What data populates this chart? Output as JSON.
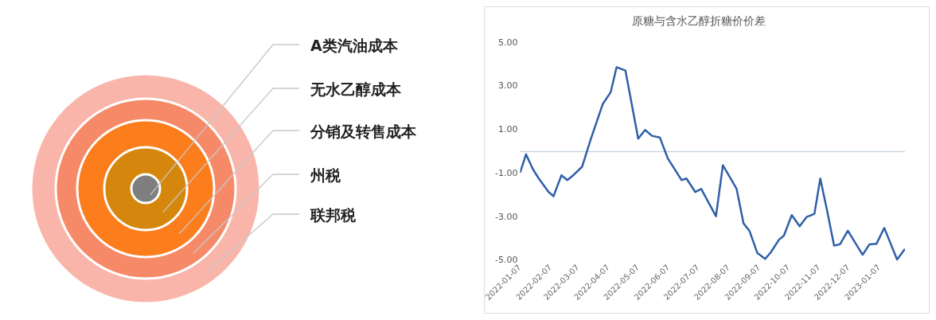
{
  "chart_data": [
    {
      "type": "other",
      "categories": [
        "A类汽油成本",
        "无水乙醇成本",
        "分销及转售成本",
        "州税",
        "联邦税"
      ],
      "colors": [
        "#7f7f7f",
        "#d4870c",
        "#fb7d1c",
        "#f68a68",
        "#f9b5aa"
      ]
    },
    {
      "type": "line",
      "title": "原糖与含水乙醇折糖价价差",
      "legend": false,
      "grid": false,
      "marker": "none",
      "line_style": "solid",
      "x": [
        "2022-01-07",
        "2022-01-13",
        "2022-01-20",
        "2022-01-26",
        "2022-02-05",
        "2022-02-10",
        "2022-02-18",
        "2022-02-24",
        "2022-03-02",
        "2022-03-11",
        "2022-03-20",
        "2022-04-01",
        "2022-04-09",
        "2022-04-15",
        "2022-04-24",
        "2022-05-07",
        "2022-05-14",
        "2022-05-21",
        "2022-05-29",
        "2022-06-06",
        "2022-06-20",
        "2022-06-25",
        "2022-07-04",
        "2022-07-10",
        "2022-07-25",
        "2022-08-01",
        "2022-08-09",
        "2022-08-15",
        "2022-08-22",
        "2022-08-28",
        "2022-09-05",
        "2022-09-13",
        "2022-09-19",
        "2022-09-27",
        "2022-10-02",
        "2022-10-10",
        "2022-10-18",
        "2022-10-25",
        "2022-11-02",
        "2022-11-08",
        "2022-11-15",
        "2022-11-22",
        "2022-11-28",
        "2022-12-06",
        "2022-12-21",
        "2022-12-28",
        "2023-01-04",
        "2023-01-12",
        "2023-01-25",
        "2023-02-02"
      ],
      "series": [
        {
          "color": "#2f5fa7",
          "values": [
            -0.96,
            -0.12,
            -0.8,
            -1.23,
            -1.85,
            -2.04,
            -1.08,
            -1.3,
            -1.08,
            -0.69,
            0.6,
            2.19,
            2.73,
            3.88,
            3.73,
            0.6,
            1.0,
            0.73,
            0.65,
            -0.3,
            -1.3,
            -1.23,
            -1.85,
            -1.71,
            -2.96,
            -0.62,
            -1.23,
            -1.71,
            -3.29,
            -3.63,
            -4.65,
            -4.92,
            -4.6,
            -4.04,
            -3.85,
            -2.91,
            -3.42,
            -3.0,
            -2.85,
            -1.23,
            -2.73,
            -4.31,
            -4.25,
            -3.63,
            -4.73,
            -4.25,
            -4.23,
            -3.5,
            -4.95,
            -4.46
          ]
        }
      ],
      "xlim": [
        "2022-01-07",
        "2023-02-02"
      ],
      "xticks": [
        "2022-01-07",
        "2022-02-07",
        "2022-03-07",
        "2022-04-07",
        "2022-05-07",
        "2022-06-07",
        "2022-07-07",
        "2022-08-07",
        "2022-09-07",
        "2022-10-07",
        "2022-11-07",
        "2022-12-07",
        "2023-01-07"
      ],
      "ylim": [
        -5,
        5
      ],
      "ref_lines": [
        {
          "axis": "y",
          "value": 0,
          "color": "#b8c7d9"
        }
      ],
      "yticks": [
        {
          "value": 5,
          "label": "5.00"
        },
        {
          "value": 3,
          "label": "3.00"
        },
        {
          "value": 1,
          "label": "1.00"
        },
        {
          "value": -1,
          "label": "-1.00"
        },
        {
          "value": -3,
          "label": "-3.00"
        },
        {
          "value": -5,
          "label": "-5.00"
        }
      ]
    }
  ]
}
